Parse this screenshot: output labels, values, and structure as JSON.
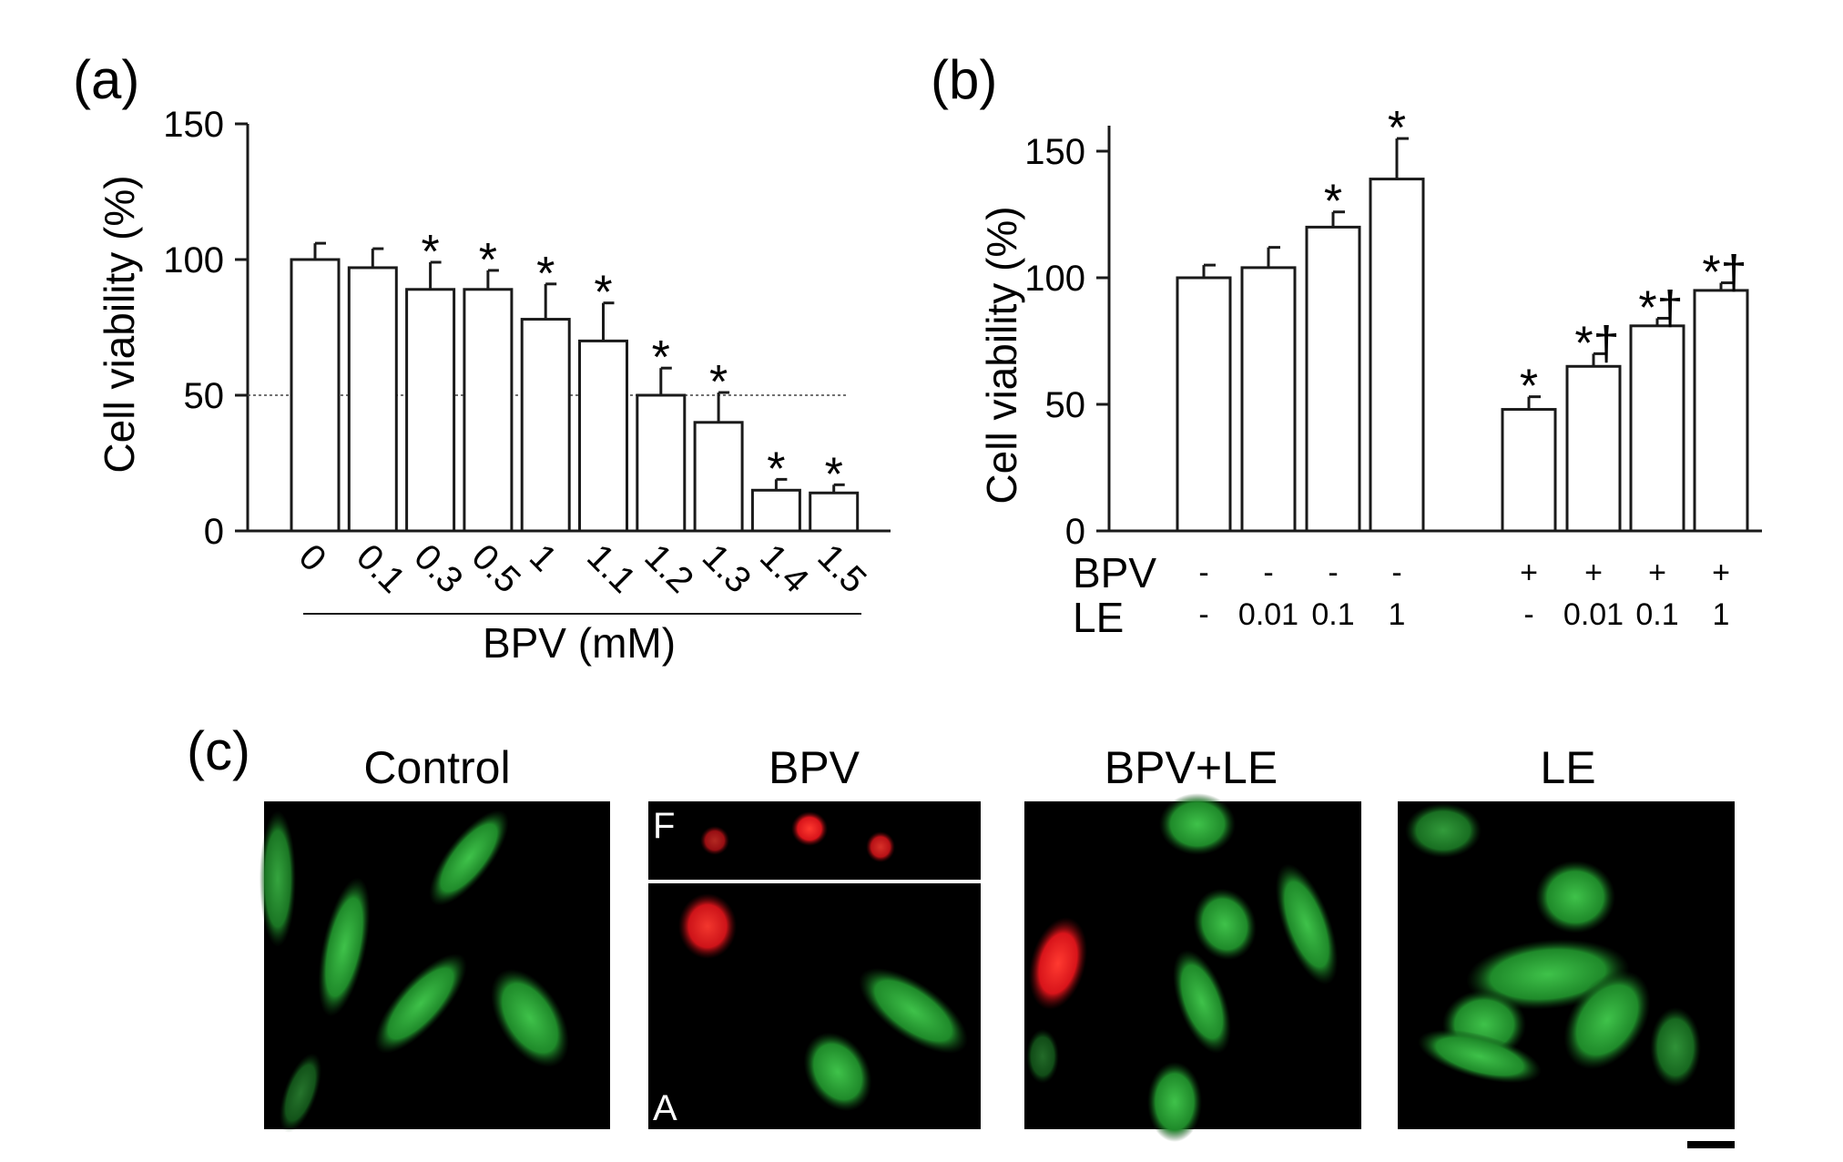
{
  "panels": {
    "a": {
      "letter": "(a)"
    },
    "b": {
      "letter": "(b)"
    },
    "c": {
      "letter": "(c)",
      "titles": [
        "Control",
        "BPV",
        "BPV+LE",
        "LE"
      ],
      "inset_top_label": "F",
      "inset_bottom_label": "A"
    }
  },
  "colors": {
    "bar_fill": "#ffffff",
    "stroke": "#1a1a1a",
    "green_stain": "#2fa83a",
    "red_stain": "#e0141c",
    "micro_bg": "#000000"
  },
  "chart_data": [
    {
      "type": "bar",
      "panel": "a",
      "categories": [
        "0",
        "0.1",
        "0.3",
        "0.5",
        "1",
        "1.1",
        "1.2",
        "1.3",
        "1.4",
        "1.5"
      ],
      "values": [
        100,
        97,
        89,
        89,
        78,
        70,
        50,
        40,
        15,
        14
      ],
      "errors": [
        6,
        7,
        10,
        7,
        13,
        14,
        10,
        11,
        4,
        3
      ],
      "annotations": [
        "",
        "",
        "*",
        "*",
        "*",
        "*",
        "*",
        "*",
        "*",
        "*"
      ],
      "xlabel": "BPV (mM)",
      "ylabel": "Cell viability (%)",
      "ylim": [
        0,
        150
      ],
      "yticks": [
        0,
        50,
        100,
        150
      ],
      "reference_line": 50,
      "grid": false
    },
    {
      "type": "bar",
      "panel": "b",
      "row_labels": [
        "BPV",
        "LE"
      ],
      "bpv": [
        "-",
        "-",
        "-",
        "-",
        "+",
        "+",
        "+",
        "+"
      ],
      "le": [
        "-",
        "0.01",
        "0.1",
        "1",
        "-",
        "0.01",
        "0.1",
        "1"
      ],
      "values": [
        100,
        104,
        120,
        139,
        48,
        65,
        81,
        95
      ],
      "errors": [
        5,
        8,
        6,
        16,
        5,
        5,
        3,
        3
      ],
      "annotations": [
        "",
        "",
        "*",
        "*",
        "*",
        "*†",
        "*†",
        "*†"
      ],
      "ylabel": "Cell viability (%)",
      "ylim": [
        0,
        160
      ],
      "yticks": [
        0,
        50,
        100,
        150
      ],
      "grid": false
    }
  ]
}
